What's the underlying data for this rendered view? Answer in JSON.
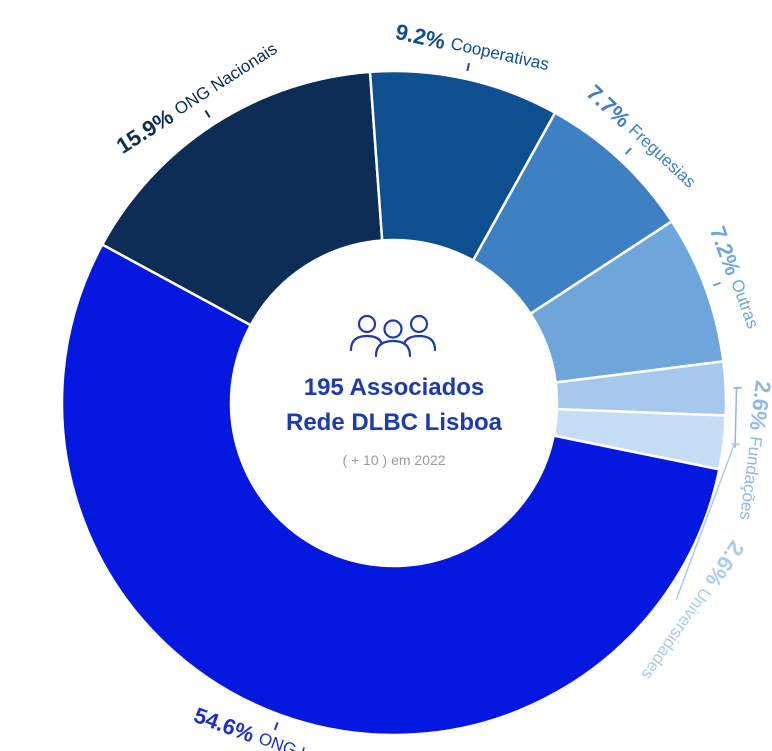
{
  "chart_data": {
    "type": "pie",
    "donut": true,
    "slices": [
      {
        "label": "ONG Locais",
        "pct_text": "54.6%",
        "value": 54.6,
        "color": "#0418e0",
        "label_color": "#1a2fd0"
      },
      {
        "label": "ONG Nacionais",
        "pct_text": "15.9%",
        "value": 15.9,
        "color": "#0c2e56",
        "label_color": "#0c2e56"
      },
      {
        "label": "Cooperativas",
        "pct_text": "9.2%",
        "value": 9.2,
        "color": "#0e4f8f",
        "label_color": "#0e4f8f"
      },
      {
        "label": "Freguesias",
        "pct_text": "7.7%",
        "value": 7.7,
        "color": "#3d80c4",
        "label_color": "#3d80c4"
      },
      {
        "label": "Outras",
        "pct_text": "7.2%",
        "value": 7.2,
        "color": "#6ea6dc",
        "label_color": "#6ea6dc"
      },
      {
        "label": "Fundações",
        "pct_text": "2.6%",
        "value": 2.6,
        "color": "#a5c8ec",
        "label_color": "#8fb8e6"
      },
      {
        "label": "Universidades",
        "pct_text": "2.6%",
        "value": 2.6,
        "color": "#c5ddf5",
        "label_color": "#a9cbee"
      }
    ]
  },
  "center": {
    "title_line1": "195 Associados",
    "title_line2": "Rede DLBC Lisboa",
    "subtitle": "( + 10 ) em 2022",
    "icon": "people-group-icon",
    "accent": "#1c3bb0"
  }
}
